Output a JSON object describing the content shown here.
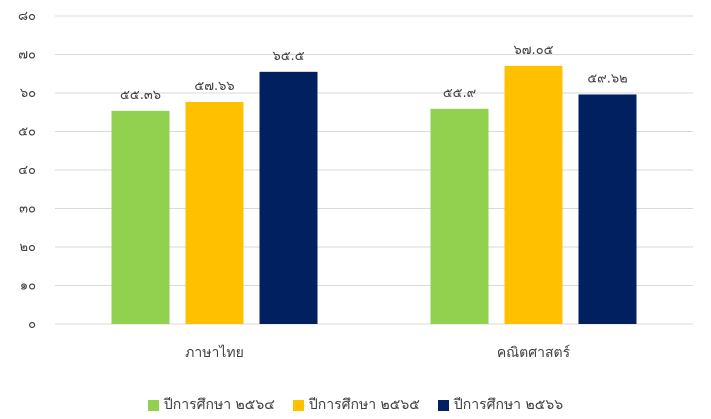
{
  "chart_data": {
    "type": "bar",
    "categories": [
      "ภาษาไทย",
      "คณิตศาสตร์"
    ],
    "series": [
      {
        "name": "ปีการศึกษา ๒๕๖๔",
        "values": [
          55.36,
          55.9
        ],
        "labels": [
          "๕๕.๓๖",
          "๕๕.๙"
        ],
        "color": "#92D050"
      },
      {
        "name": "ปีการศึกษา ๒๕๖๕",
        "values": [
          57.66,
          67.05
        ],
        "labels": [
          "๕๗.๖๖",
          "๖๗.๐๕"
        ],
        "color": "#FFC000"
      },
      {
        "name": "ปีการศึกษา ๒๕๖๖",
        "values": [
          65.5,
          59.62
        ],
        "labels": [
          "๖๕.๕",
          "๕๙.๖๒"
        ],
        "color": "#002060"
      }
    ],
    "yticks": [
      "๐",
      "๑๐",
      "๒๐",
      "๓๐",
      "๔๐",
      "๕๐",
      "๖๐",
      "๗๐",
      "๘๐"
    ],
    "ylim": [
      0,
      80
    ],
    "grid": true,
    "legend_position": "bottom",
    "gridline_color": "#D9D9D9"
  }
}
